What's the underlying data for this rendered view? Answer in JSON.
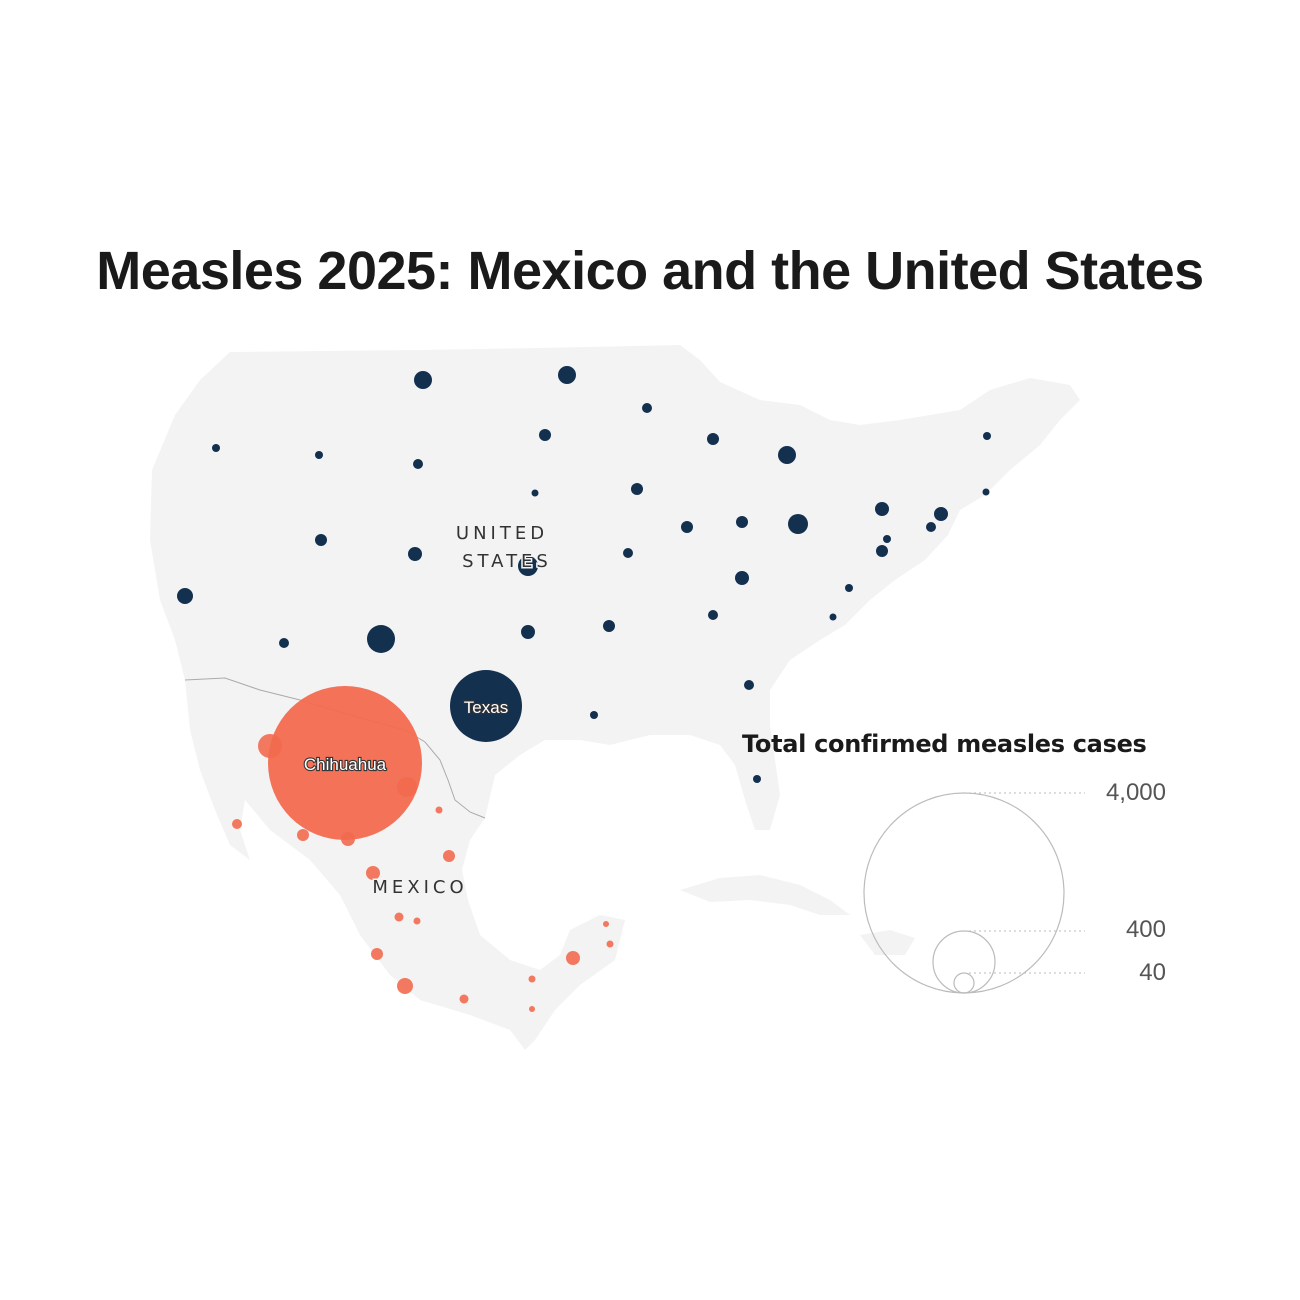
{
  "title": "Measles 2025: Mexico and the United States",
  "map": {
    "country_labels": {
      "us_line1": "UNITED",
      "us_line2": "STATES",
      "mexico": "MEXICO"
    },
    "bubble_labels": {
      "texas": "Texas",
      "chihuahua": "Chihuahua"
    },
    "colors": {
      "land": "#f3f3f3",
      "us_bubble": "#13304f",
      "mexico_bubble": "#f26a4f",
      "border": "#aaaaaa"
    }
  },
  "legend": {
    "title": "Total confirmed measles cases",
    "values": [
      "4,000",
      "400",
      "40"
    ]
  }
}
